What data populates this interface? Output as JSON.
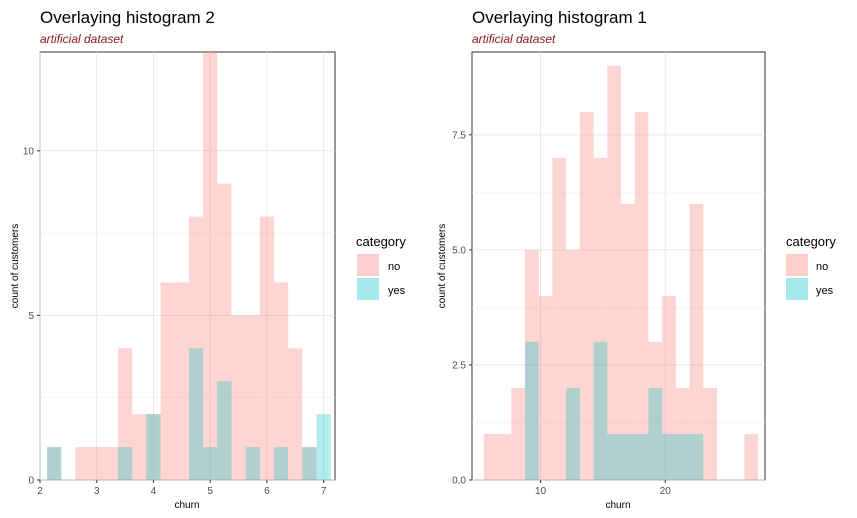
{
  "chart_data": [
    {
      "type": "histogram",
      "title": "Overlaying histogram 2",
      "subtitle": "artificial dataset",
      "xlabel": "churn",
      "ylabel": "count of customers",
      "xlim": [
        2,
        7.2
      ],
      "ylim": [
        0,
        13
      ],
      "x_ticks": [
        2,
        3,
        4,
        5,
        6,
        7
      ],
      "y_ticks": [
        0,
        5,
        10
      ],
      "y_tick_labels": [
        "0",
        "5",
        "10"
      ],
      "grid": true,
      "bin_width": 0.25,
      "legend": {
        "title": "category",
        "position": "right",
        "entries": [
          "no",
          "yes"
        ]
      },
      "colors": {
        "no": "#F8766D",
        "yes": "#00BFC4"
      },
      "series": [
        {
          "name": "no",
          "x": [
            2.25,
            2.5,
            2.75,
            3.0,
            3.25,
            3.5,
            3.75,
            4.0,
            4.25,
            4.5,
            4.75,
            5.0,
            5.25,
            5.5,
            5.75,
            6.0,
            6.25,
            6.5,
            6.75,
            7.0
          ],
          "values": [
            1,
            0,
            1,
            1,
            1,
            4,
            2,
            2,
            6,
            6,
            8,
            13,
            9,
            5,
            5,
            8,
            6,
            4,
            1,
            0
          ]
        },
        {
          "name": "yes",
          "x": [
            2.25,
            2.5,
            2.75,
            3.0,
            3.25,
            3.5,
            3.75,
            4.0,
            4.25,
            4.5,
            4.75,
            5.0,
            5.25,
            5.5,
            5.75,
            6.0,
            6.25,
            6.5,
            6.75,
            7.0
          ],
          "values": [
            1,
            0,
            0,
            0,
            0,
            1,
            0,
            2,
            0,
            0,
            4,
            1,
            3,
            0,
            1,
            0,
            1,
            0,
            1,
            2
          ]
        }
      ]
    },
    {
      "type": "histogram",
      "title": "Overlaying histogram 1",
      "subtitle": "artificial dataset",
      "xlabel": "churn",
      "ylabel": "count of customers",
      "xlim": [
        4.5,
        28
      ],
      "ylim": [
        0,
        9.3
      ],
      "x_ticks": [
        10,
        20
      ],
      "y_ticks": [
        0,
        2.5,
        5,
        7.5
      ],
      "y_tick_labels": [
        "0.0",
        "2.5",
        "5.0",
        "7.5"
      ],
      "grid": true,
      "bin_width": 1.1,
      "legend": {
        "title": "category",
        "position": "right",
        "entries": [
          "no",
          "yes"
        ]
      },
      "colors": {
        "no": "#F8766D",
        "yes": "#00BFC4"
      },
      "series": [
        {
          "name": "no",
          "x": [
            6.0,
            7.1,
            8.2,
            9.3,
            10.4,
            11.5,
            12.6,
            13.7,
            14.8,
            15.9,
            17.0,
            18.1,
            19.2,
            20.3,
            21.4,
            22.5,
            23.6,
            24.7,
            25.8,
            26.9
          ],
          "values": [
            1,
            1,
            2,
            5,
            4,
            7,
            5,
            8,
            7,
            9,
            6,
            8,
            3,
            4,
            2,
            6,
            2,
            0,
            0,
            1
          ]
        },
        {
          "name": "yes",
          "x": [
            6.0,
            7.1,
            8.2,
            9.3,
            10.4,
            11.5,
            12.6,
            13.7,
            14.8,
            15.9,
            17.0,
            18.1,
            19.2,
            20.3,
            21.4,
            22.5,
            23.6,
            24.7,
            25.8,
            26.9
          ],
          "values": [
            0,
            0,
            0,
            3,
            0,
            0,
            2,
            0,
            3,
            1,
            1,
            1,
            2,
            1,
            1,
            1,
            0,
            0,
            0,
            0
          ]
        }
      ]
    }
  ]
}
